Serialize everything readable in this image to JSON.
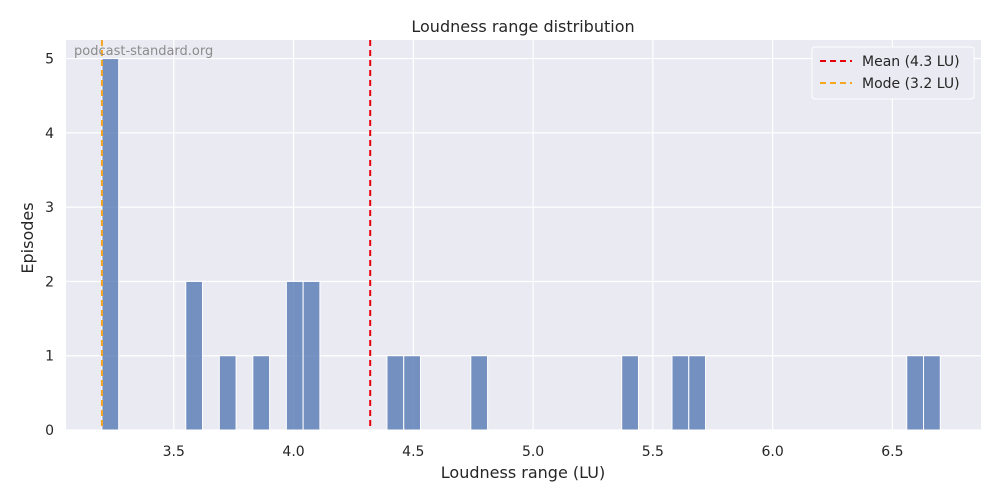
{
  "chart_data": {
    "type": "bar",
    "title": "Loudness range distribution",
    "xlabel": "Loudness range (LU)",
    "ylabel": "Episodes",
    "xlim": [
      3.05,
      6.87
    ],
    "ylim": [
      0,
      5.25
    ],
    "xticks": [
      3.5,
      4.0,
      4.5,
      5.0,
      5.5,
      6.0,
      6.5
    ],
    "xtick_labels": [
      "3.5",
      "4.0",
      "4.5",
      "5.0",
      "5.5",
      "6.0",
      "6.5"
    ],
    "yticks": [
      0,
      1,
      2,
      3,
      4,
      5
    ],
    "ytick_labels": [
      "0",
      "1",
      "2",
      "3",
      "4",
      "5"
    ],
    "bin_width": 0.07,
    "bars": [
      {
        "x0": 3.2,
        "x1": 3.27,
        "count": 5
      },
      {
        "x0": 3.55,
        "x1": 3.62,
        "count": 2
      },
      {
        "x0": 3.69,
        "x1": 3.76,
        "count": 1
      },
      {
        "x0": 3.83,
        "x1": 3.9,
        "count": 1
      },
      {
        "x0": 3.97,
        "x1": 4.04,
        "count": 2
      },
      {
        "x0": 4.04,
        "x1": 4.11,
        "count": 2
      },
      {
        "x0": 4.39,
        "x1": 4.46,
        "count": 1
      },
      {
        "x0": 4.46,
        "x1": 4.53,
        "count": 1
      },
      {
        "x0": 4.74,
        "x1": 4.81,
        "count": 1
      },
      {
        "x0": 5.37,
        "x1": 5.44,
        "count": 1
      },
      {
        "x0": 5.58,
        "x1": 5.65,
        "count": 1
      },
      {
        "x0": 5.65,
        "x1": 5.72,
        "count": 1
      },
      {
        "x0": 6.56,
        "x1": 6.63,
        "count": 1
      },
      {
        "x0": 6.63,
        "x1": 6.7,
        "count": 1
      }
    ],
    "reference_lines": [
      {
        "label": "Mean (4.3 LU)",
        "x": 4.32,
        "color": "#e8000b",
        "style": "dashed"
      },
      {
        "label": "Mode (3.2 LU)",
        "x": 3.2,
        "color": "#f5a623",
        "style": "dashed"
      }
    ],
    "bar_color": "#4c72b0",
    "background_color": "#eaeaf2",
    "grid": true,
    "legend_position": "top-right",
    "watermark": "podcast-standard.org"
  }
}
